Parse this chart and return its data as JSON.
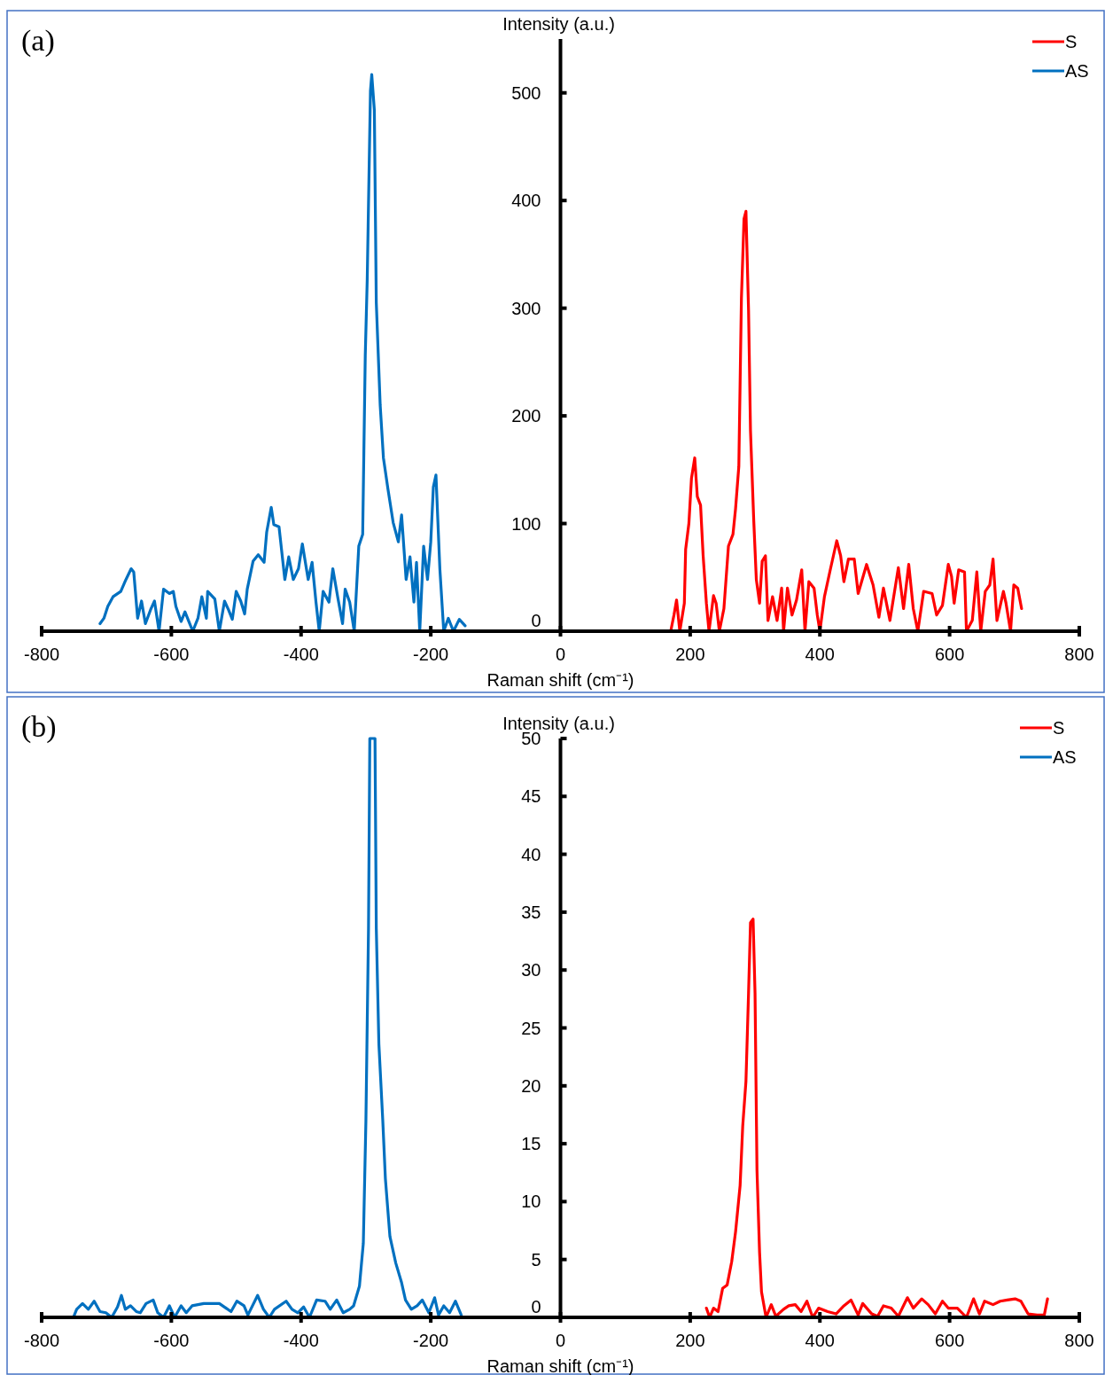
{
  "chart_data": [
    {
      "type": "line",
      "title": "(a)",
      "xlabel": "Raman shift (cm⁻¹)",
      "ylabel": "Intensity (a.u.)",
      "xlim": [
        -800,
        800
      ],
      "xticks": [
        -800,
        -600,
        -400,
        -200,
        0,
        200,
        400,
        600,
        800
      ],
      "ylim": [
        0,
        550
      ],
      "yticks": [
        0,
        100,
        200,
        300,
        400,
        500
      ],
      "grid": false,
      "legend": "top right",
      "marker": "none",
      "line_style": "solid",
      "series": [
        {
          "name": "S",
          "color": "#ff0000",
          "x": [
            170,
            175,
            179,
            184,
            191,
            193,
            198,
            202,
            207,
            211,
            216,
            220,
            225,
            229,
            236,
            240,
            245,
            252,
            259,
            266,
            270,
            275,
            279,
            283,
            286,
            290,
            293,
            298,
            302,
            307,
            311,
            316,
            320,
            327,
            334,
            341,
            344,
            350,
            357,
            364,
            372,
            377,
            383,
            391,
            396,
            400,
            407,
            416,
            426,
            432,
            437,
            444,
            453,
            459,
            472,
            482,
            491,
            498,
            508,
            521,
            529,
            537,
            544,
            551,
            560,
            573,
            580,
            589,
            598,
            603,
            607,
            614,
            623,
            626,
            635,
            642,
            648,
            655,
            662,
            667,
            673,
            683,
            687,
            694,
            699,
            705,
            711
          ],
          "values": [
            0,
            15,
            29,
            0,
            26,
            76,
            100,
            142,
            161,
            125,
            117,
            70,
            26,
            0,
            33,
            26,
            0,
            21,
            79,
            90,
            114,
            153,
            309,
            383,
            390,
            298,
            186,
            103,
            48,
            26,
            65,
            70,
            10,
            32,
            10,
            40,
            0,
            40,
            15,
            29,
            57,
            0,
            46,
            40,
            15,
            0,
            32,
            57,
            84,
            70,
            46,
            67,
            67,
            35,
            62,
            43,
            13,
            40,
            10,
            59,
            21,
            62,
            21,
            0,
            37,
            35,
            15,
            24,
            62,
            51,
            26,
            57,
            55,
            0,
            10,
            55,
            0,
            37,
            43,
            67,
            10,
            37,
            26,
            0,
            43,
            40,
            21
          ]
        },
        {
          "name": "AS",
          "color": "#0070c0",
          "x": [
            -710,
            -704,
            -698,
            -690,
            -678,
            -670,
            -662,
            -658,
            -652,
            -646,
            -640,
            -632,
            -626,
            -619,
            -612,
            -603,
            -597,
            -593,
            -585,
            -579,
            -573,
            -567,
            -559,
            -553,
            -546,
            -544,
            -533,
            -526,
            -518,
            -512,
            -506,
            -500,
            -493,
            -487,
            -483,
            -474,
            -466,
            -457,
            -453,
            -446,
            -442,
            -434,
            -425,
            -419,
            -412,
            -404,
            -398,
            -389,
            -383,
            -377,
            -372,
            -366,
            -357,
            -351,
            -343,
            -336,
            -332,
            -325,
            -318,
            -311,
            -305,
            -301,
            -298,
            -293,
            -291,
            -287,
            -284,
            -278,
            -273,
            -266,
            -258,
            -250,
            -245,
            -238,
            -232,
            -226,
            -222,
            -217,
            -211,
            -205,
            -200,
            -196,
            -192,
            -186,
            -180,
            -173,
            -165,
            -156,
            -147
          ],
          "values": [
            7,
            12,
            23,
            32,
            37,
            48,
            58,
            55,
            12,
            28,
            7,
            20,
            28,
            0,
            39,
            35,
            37,
            23,
            9,
            18,
            9,
            0,
            12,
            32,
            12,
            37,
            30,
            0,
            28,
            20,
            11,
            37,
            28,
            16,
            39,
            65,
            71,
            64,
            92,
            115,
            99,
            97,
            48,
            69,
            48,
            58,
            81,
            48,
            64,
            27,
            0,
            37,
            27,
            58,
            30,
            7,
            39,
            27,
            0,
            79,
            90,
            256,
            326,
            502,
            517,
            484,
            305,
            210,
            161,
            132,
            101,
            83,
            108,
            48,
            69,
            27,
            64,
            0,
            79,
            48,
            83,
            134,
            145,
            58,
            0,
            12,
            0,
            11,
            5
          ]
        }
      ]
    },
    {
      "type": "line",
      "title": "(b)",
      "xlabel": "Raman shift (cm⁻¹)",
      "ylabel": "Intensity (a.u.)",
      "xlim": [
        -800,
        800
      ],
      "xticks": [
        -800,
        -600,
        -400,
        -200,
        0,
        200,
        400,
        600,
        800
      ],
      "ylim": [
        0,
        50
      ],
      "yticks": [
        0,
        5,
        10,
        15,
        20,
        25,
        30,
        35,
        40,
        45,
        50
      ],
      "grid": false,
      "legend": "top right",
      "marker": "none",
      "line_style": "solid",
      "series": [
        {
          "name": "S",
          "color": "#ff0000",
          "x": [
            225,
            230,
            236,
            243,
            250,
            257,
            264,
            270,
            277,
            281,
            286,
            290,
            293,
            297,
            300,
            303,
            307,
            310,
            317,
            325,
            332,
            344,
            352,
            362,
            371,
            380,
            389,
            398,
            412,
            425,
            437,
            448,
            459,
            466,
            480,
            489,
            498,
            510,
            521,
            535,
            544,
            557,
            567,
            578,
            589,
            598,
            612,
            626,
            637,
            646,
            654,
            667,
            678,
            689,
            701,
            710,
            721,
            735,
            746,
            751
          ],
          "values": [
            0.8,
            0,
            0.8,
            0.5,
            2.5,
            2.8,
            4.8,
            7.4,
            11.4,
            16.5,
            20.4,
            28,
            34.1,
            34.4,
            28,
            12.7,
            5.6,
            2.2,
            0,
            1.1,
            0.1,
            0.7,
            1,
            1.1,
            0.5,
            1.4,
            0,
            0.8,
            0.5,
            0.3,
            1,
            1.5,
            0.2,
            1.2,
            0.3,
            0.1,
            1,
            0.8,
            0.1,
            1.7,
            0.8,
            1.6,
            1.1,
            0.3,
            1.4,
            0.8,
            0.8,
            0,
            1.6,
            0.3,
            1.4,
            1.1,
            1.4,
            1.5,
            1.6,
            1.4,
            0.3,
            0.2,
            0.2,
            1.6
          ]
        },
        {
          "name": "AS",
          "color": "#0070c0",
          "x": [
            -751,
            -746,
            -737,
            -728,
            -719,
            -710,
            -701,
            -692,
            -683,
            -677,
            -671,
            -663,
            -654,
            -648,
            -639,
            -628,
            -621,
            -612,
            -603,
            -595,
            -585,
            -577,
            -568,
            -550,
            -526,
            -508,
            -499,
            -488,
            -482,
            -467,
            -458,
            -449,
            -441,
            -423,
            -414,
            -405,
            -396,
            -387,
            -376,
            -363,
            -355,
            -345,
            -335,
            -325,
            -319,
            -310,
            -304,
            -300,
            -296,
            -294,
            -286,
            -284,
            -280,
            -274,
            -270,
            -263,
            -254,
            -245,
            -239,
            -230,
            -221,
            -213,
            -203,
            -194,
            -188,
            -180,
            -171,
            -162,
            -153
          ],
          "values": [
            0,
            0.7,
            1.2,
            0.7,
            1.4,
            0.5,
            0.4,
            0,
            0.9,
            1.9,
            0.7,
            1,
            0.5,
            0.4,
            1.2,
            1.5,
            0.4,
            0,
            1,
            0,
            1,
            0.4,
            1,
            1.2,
            1.2,
            0.5,
            1.4,
            1,
            0.2,
            1.9,
            0.7,
            0,
            0.7,
            1.4,
            0.7,
            0.4,
            0.9,
            0,
            1.5,
            1.4,
            0.7,
            1.5,
            0.4,
            0.7,
            1,
            2.7,
            6.4,
            17,
            33.6,
            50,
            50,
            33.6,
            23.6,
            17,
            12,
            7,
            4.7,
            3,
            1.5,
            0.7,
            1,
            1.5,
            0.4,
            1.7,
            0.2,
            1,
            0.4,
            1.4,
            0.2
          ]
        }
      ]
    }
  ]
}
